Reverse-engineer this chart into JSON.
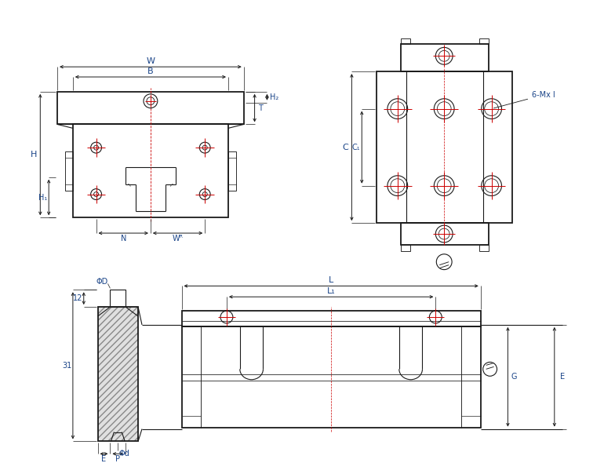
{
  "bg_color": "#ffffff",
  "lc": "#1a1a1a",
  "rc": "#cc0000",
  "bc": "#1a4488",
  "figsize": [
    7.7,
    5.9
  ],
  "dpi": 100,
  "labels": {
    "W": "W",
    "B": "B",
    "H": "H",
    "H1": "H₁",
    "H2": "H₂",
    "T": "T",
    "N": "N",
    "WR": "Wᴿ",
    "C": "C",
    "C1": "C₁",
    "six_mx": "6-Mx l",
    "L": "L",
    "L1": "L₁",
    "G": "G",
    "PhiD": "ΦD",
    "Phid": "Φd",
    "E": "E",
    "P": "P",
    "twelve": "12",
    "thirtyone": "31"
  }
}
